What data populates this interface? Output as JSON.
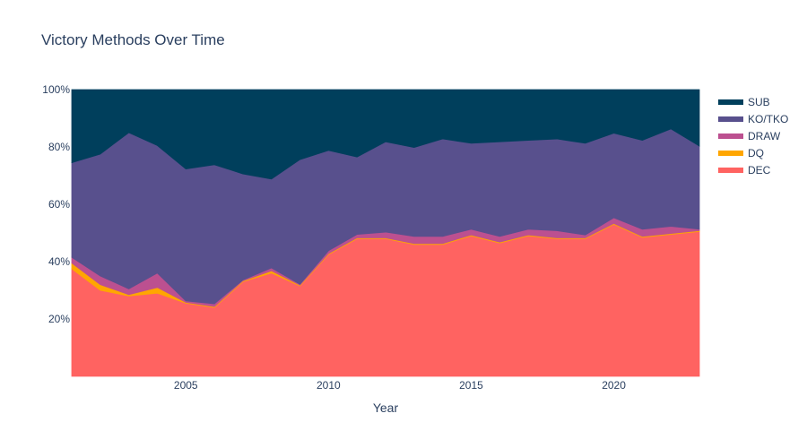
{
  "chart_data": {
    "type": "area",
    "stacking": "percent",
    "title": "Victory Methods Over Time",
    "xlabel": "Year",
    "ylabel": "",
    "x": [
      2001,
      2002,
      2003,
      2004,
      2005,
      2006,
      2007,
      2008,
      2009,
      2010,
      2011,
      2012,
      2013,
      2014,
      2015,
      2016,
      2017,
      2018,
      2019,
      2020,
      2021,
      2022,
      2023
    ],
    "xlim": [
      2001,
      2023
    ],
    "ylim": [
      0,
      100
    ],
    "x_ticks": [
      2005,
      2010,
      2015,
      2020
    ],
    "y_ticks": [
      20,
      40,
      60,
      80,
      100
    ],
    "y_tick_suffix": "%",
    "legend_position": "right",
    "series": [
      {
        "name": "DEC",
        "color": "#FF6361",
        "values": [
          37.5,
          30,
          28,
          29,
          25.5,
          24,
          33,
          36,
          31.5,
          42.5,
          48,
          48,
          46,
          46,
          49,
          46.5,
          49,
          48,
          48,
          53,
          48.5,
          49.5,
          50.5
        ]
      },
      {
        "name": "DQ",
        "color": "#FFA600",
        "values": [
          2,
          2,
          0.5,
          2,
          0.3,
          0.3,
          0.3,
          0.8,
          0.3,
          0.3,
          0.3,
          0.3,
          0.3,
          0.3,
          0.3,
          0.3,
          0.3,
          0.3,
          0.3,
          0.3,
          0.3,
          0.3,
          0.3
        ]
      },
      {
        "name": "DRAW",
        "color": "#BC5090",
        "values": [
          2,
          3,
          2,
          5,
          0.5,
          1,
          0.3,
          1,
          0.3,
          1,
          1.2,
          2,
          2.5,
          2.5,
          2,
          2,
          2,
          2.5,
          1,
          2,
          2.5,
          2.5,
          0.5
        ]
      },
      {
        "name": "KO/TKO",
        "color": "#58508D",
        "values": [
          33,
          42.5,
          54.5,
          44.5,
          46,
          48.5,
          37,
          31,
          43.5,
          35,
          27,
          31.5,
          31,
          34,
          30,
          33,
          31,
          32,
          32,
          29.5,
          31,
          34,
          29
        ]
      },
      {
        "name": "SUB",
        "color": "#003F5C",
        "values": [
          25.5,
          22.5,
          15,
          19.5,
          27.7,
          26.2,
          29.4,
          31.2,
          24.4,
          21.2,
          23.5,
          18.2,
          20.2,
          17.2,
          18.7,
          18.2,
          17.7,
          17.2,
          18.7,
          15.2,
          17.7,
          13.7,
          19.7
        ]
      }
    ]
  }
}
